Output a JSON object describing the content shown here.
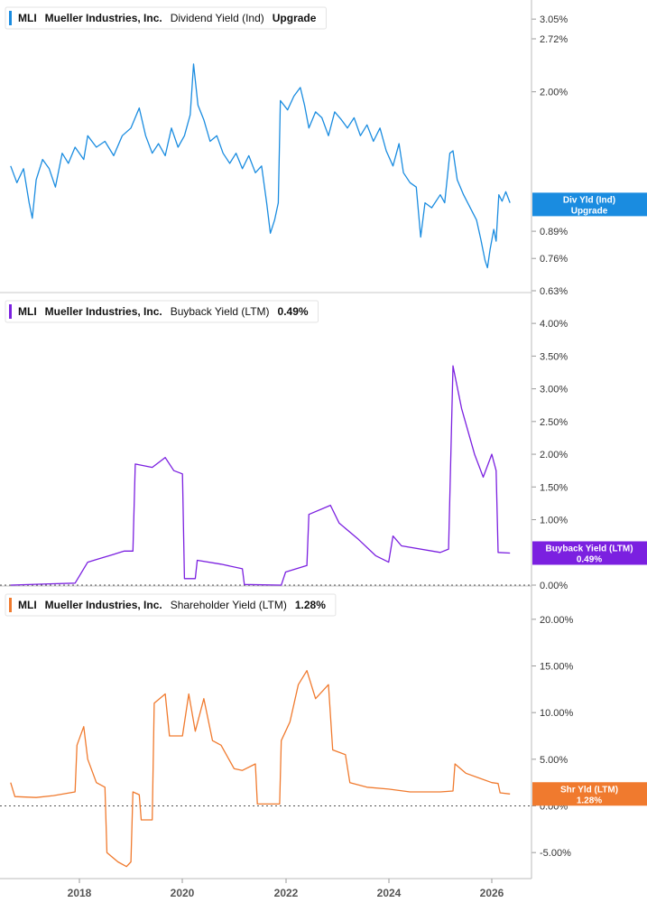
{
  "colors": {
    "dividend": "#1a8ce0",
    "buyback": "#7b20e0",
    "shareholder": "#f07a2e",
    "grid": "#c8c8c8",
    "text": "#333333"
  },
  "chart_data": [
    {
      "type": "line",
      "title": "",
      "legend": {
        "ticker": "MLI",
        "company": "Mueller Industries, Inc.",
        "metric": "Dividend Yield (Ind)",
        "value": "Upgrade"
      },
      "y_scale": "log",
      "ylim": [
        0.63,
        3.2
      ],
      "y_ticks": [
        "3.05%",
        "2.72%",
        "2.00%",
        "0.89%",
        "0.76%",
        "0.63%"
      ],
      "y_tick_values": [
        3.05,
        2.72,
        2.0,
        0.89,
        0.76,
        0.63
      ],
      "badge": {
        "line1": "Div Yld (Ind)",
        "line2": "Upgrade",
        "behind_text": "1.0",
        "value": 1.04
      },
      "series": [
        {
          "values": [
            [
              "2016-09-01",
              1.3
            ],
            [
              "2016-10-15",
              1.18
            ],
            [
              "2016-12-01",
              1.28
            ],
            [
              "2017-01-10",
              1.05
            ],
            [
              "2017-02-01",
              0.96
            ],
            [
              "2017-03-01",
              1.2
            ],
            [
              "2017-04-15",
              1.35
            ],
            [
              "2017-06-01",
              1.28
            ],
            [
              "2017-07-15",
              1.15
            ],
            [
              "2017-09-01",
              1.4
            ],
            [
              "2017-10-15",
              1.32
            ],
            [
              "2017-12-01",
              1.45
            ],
            [
              "2018-02-01",
              1.35
            ],
            [
              "2018-03-01",
              1.55
            ],
            [
              "2018-05-01",
              1.45
            ],
            [
              "2018-07-01",
              1.5
            ],
            [
              "2018-09-01",
              1.38
            ],
            [
              "2018-11-01",
              1.55
            ],
            [
              "2019-01-01",
              1.62
            ],
            [
              "2019-03-01",
              1.82
            ],
            [
              "2019-04-15",
              1.55
            ],
            [
              "2019-06-01",
              1.4
            ],
            [
              "2019-07-15",
              1.48
            ],
            [
              "2019-09-01",
              1.38
            ],
            [
              "2019-10-15",
              1.62
            ],
            [
              "2019-12-01",
              1.45
            ],
            [
              "2020-01-15",
              1.55
            ],
            [
              "2020-02-25",
              1.75
            ],
            [
              "2020-03-20",
              2.35
            ],
            [
              "2020-04-20",
              1.85
            ],
            [
              "2020-06-01",
              1.7
            ],
            [
              "2020-07-15",
              1.5
            ],
            [
              "2020-09-01",
              1.55
            ],
            [
              "2020-10-15",
              1.4
            ],
            [
              "2020-12-01",
              1.32
            ],
            [
              "2021-01-15",
              1.4
            ],
            [
              "2021-03-01",
              1.28
            ],
            [
              "2021-04-15",
              1.38
            ],
            [
              "2021-06-01",
              1.25
            ],
            [
              "2021-07-15",
              1.3
            ],
            [
              "2021-08-20",
              1.05
            ],
            [
              "2021-09-15",
              0.88
            ],
            [
              "2021-10-15",
              0.95
            ],
            [
              "2021-11-10",
              1.05
            ],
            [
              "2021-11-25",
              1.9
            ],
            [
              "2022-01-15",
              1.8
            ],
            [
              "2022-03-01",
              1.95
            ],
            [
              "2022-04-15",
              2.05
            ],
            [
              "2022-05-15",
              1.85
            ],
            [
              "2022-06-15",
              1.62
            ],
            [
              "2022-08-01",
              1.78
            ],
            [
              "2022-09-15",
              1.72
            ],
            [
              "2022-11-01",
              1.55
            ],
            [
              "2022-12-15",
              1.78
            ],
            [
              "2023-02-01",
              1.7
            ],
            [
              "2023-03-15",
              1.62
            ],
            [
              "2023-05-01",
              1.72
            ],
            [
              "2023-06-15",
              1.55
            ],
            [
              "2023-08-01",
              1.65
            ],
            [
              "2023-09-15",
              1.5
            ],
            [
              "2023-11-01",
              1.62
            ],
            [
              "2023-12-15",
              1.42
            ],
            [
              "2024-02-01",
              1.3
            ],
            [
              "2024-03-15",
              1.48
            ],
            [
              "2024-04-15",
              1.25
            ],
            [
              "2024-06-01",
              1.18
            ],
            [
              "2024-07-15",
              1.15
            ],
            [
              "2024-08-15",
              0.86
            ],
            [
              "2024-09-15",
              1.05
            ],
            [
              "2024-11-01",
              1.02
            ],
            [
              "2025-01-01",
              1.1
            ],
            [
              "2025-02-01",
              1.05
            ],
            [
              "2025-03-10",
              1.4
            ],
            [
              "2025-04-01",
              1.42
            ],
            [
              "2025-05-01",
              1.2
            ],
            [
              "2025-06-15",
              1.1
            ],
            [
              "2025-08-01",
              1.02
            ],
            [
              "2025-09-15",
              0.95
            ],
            [
              "2025-10-15",
              0.85
            ],
            [
              "2025-11-15",
              0.75
            ],
            [
              "2025-12-01",
              0.72
            ],
            [
              "2025-12-20",
              0.8
            ],
            [
              "2026-01-15",
              0.9
            ],
            [
              "2026-02-01",
              0.84
            ],
            [
              "2026-02-20",
              1.1
            ],
            [
              "2026-03-15",
              1.06
            ],
            [
              "2026-04-10",
              1.12
            ],
            [
              "2026-05-10",
              1.05
            ]
          ]
        }
      ]
    },
    {
      "type": "line",
      "title": "",
      "legend": {
        "ticker": "MLI",
        "company": "Mueller Industries, Inc.",
        "metric": "Buyback Yield (LTM)",
        "value": "0.49%"
      },
      "ylim": [
        0,
        4.25
      ],
      "y_ticks": [
        "4.00%",
        "3.50%",
        "3.00%",
        "2.50%",
        "2.00%",
        "1.50%",
        "1.00%",
        "0.00%"
      ],
      "y_tick_values": [
        4.0,
        3.5,
        3.0,
        2.5,
        2.0,
        1.5,
        1.0,
        0.0
      ],
      "badge": {
        "line1": "Buyback Yield (LTM)",
        "line2": "0.49%",
        "value": 0.49
      },
      "series": [
        {
          "values": [
            [
              "2016-09-01",
              0.0
            ],
            [
              "2017-06-01",
              0.02
            ],
            [
              "2017-12-01",
              0.03
            ],
            [
              "2018-03-01",
              0.35
            ],
            [
              "2018-05-15",
              0.4
            ],
            [
              "2018-08-01",
              0.45
            ],
            [
              "2018-11-15",
              0.52
            ],
            [
              "2019-01-15",
              0.52
            ],
            [
              "2019-02-01",
              1.85
            ],
            [
              "2019-06-01",
              1.8
            ],
            [
              "2019-09-01",
              1.95
            ],
            [
              "2019-11-01",
              1.75
            ],
            [
              "2020-01-01",
              1.7
            ],
            [
              "2020-01-15",
              0.1
            ],
            [
              "2020-04-01",
              0.1
            ],
            [
              "2020-04-15",
              0.38
            ],
            [
              "2020-10-01",
              0.32
            ],
            [
              "2021-03-01",
              0.25
            ],
            [
              "2021-03-15",
              0.01
            ],
            [
              "2021-12-01",
              0.0
            ],
            [
              "2022-01-01",
              0.2
            ],
            [
              "2022-06-01",
              0.3
            ],
            [
              "2022-06-15",
              1.08
            ],
            [
              "2022-11-15",
              1.22
            ],
            [
              "2023-01-15",
              0.95
            ],
            [
              "2023-06-01",
              0.7
            ],
            [
              "2023-10-01",
              0.45
            ],
            [
              "2024-01-01",
              0.35
            ],
            [
              "2024-02-01",
              0.75
            ],
            [
              "2024-04-01",
              0.6
            ],
            [
              "2025-01-01",
              0.5
            ],
            [
              "2025-03-01",
              0.55
            ],
            [
              "2025-04-01",
              3.35
            ],
            [
              "2025-06-01",
              2.7
            ],
            [
              "2025-09-01",
              2.0
            ],
            [
              "2025-11-01",
              1.65
            ],
            [
              "2026-01-01",
              2.0
            ],
            [
              "2026-02-01",
              1.75
            ],
            [
              "2026-02-15",
              0.5
            ],
            [
              "2026-05-10",
              0.49
            ]
          ]
        }
      ]
    },
    {
      "type": "line",
      "title": "",
      "legend": {
        "ticker": "MLI",
        "company": "Mueller Industries, Inc.",
        "metric": "Shareholder Yield (LTM)",
        "value": "1.28%"
      },
      "ylim": [
        -7.5,
        22.5
      ],
      "y_ticks": [
        "20.00%",
        "15.00%",
        "10.00%",
        "5.00%",
        "0.00%",
        "-5.00%"
      ],
      "y_tick_values": [
        20,
        15,
        10,
        5,
        0,
        -5
      ],
      "badge": {
        "line1": "Shr Yld (LTM)",
        "line2": "1.28%",
        "value": 1.28
      },
      "series": [
        {
          "values": [
            [
              "2016-09-01",
              2.5
            ],
            [
              "2016-10-01",
              1.0
            ],
            [
              "2017-03-01",
              0.9
            ],
            [
              "2017-07-01",
              1.1
            ],
            [
              "2017-12-01",
              1.5
            ],
            [
              "2017-12-15",
              6.5
            ],
            [
              "2018-02-01",
              8.5
            ],
            [
              "2018-03-01",
              5.0
            ],
            [
              "2018-05-01",
              2.5
            ],
            [
              "2018-07-01",
              2.0
            ],
            [
              "2018-07-15",
              -5.0
            ],
            [
              "2018-10-01",
              -6.0
            ],
            [
              "2018-12-01",
              -6.5
            ],
            [
              "2019-01-01",
              -6.0
            ],
            [
              "2019-01-15",
              1.5
            ],
            [
              "2019-03-01",
              1.2
            ],
            [
              "2019-03-15",
              -1.5
            ],
            [
              "2019-06-01",
              -1.5
            ],
            [
              "2019-06-15",
              11.0
            ],
            [
              "2019-09-01",
              12.0
            ],
            [
              "2019-10-01",
              7.5
            ],
            [
              "2020-01-01",
              7.5
            ],
            [
              "2020-02-15",
              12.0
            ],
            [
              "2020-04-01",
              8.0
            ],
            [
              "2020-06-01",
              11.5
            ],
            [
              "2020-08-01",
              7.0
            ],
            [
              "2020-10-01",
              6.5
            ],
            [
              "2021-01-01",
              4.0
            ],
            [
              "2021-03-01",
              3.8
            ],
            [
              "2021-06-01",
              4.5
            ],
            [
              "2021-06-15",
              0.2
            ],
            [
              "2021-11-20",
              0.2
            ],
            [
              "2021-12-01",
              7.0
            ],
            [
              "2022-02-01",
              9.0
            ],
            [
              "2022-04-01",
              13.0
            ],
            [
              "2022-06-01",
              14.5
            ],
            [
              "2022-08-01",
              11.5
            ],
            [
              "2022-11-01",
              13.0
            ],
            [
              "2022-12-01",
              6.0
            ],
            [
              "2023-03-01",
              5.5
            ],
            [
              "2023-04-01",
              2.5
            ],
            [
              "2023-08-01",
              2.0
            ],
            [
              "2024-01-01",
              1.8
            ],
            [
              "2024-06-01",
              1.5
            ],
            [
              "2025-01-01",
              1.5
            ],
            [
              "2025-04-01",
              1.6
            ],
            [
              "2025-04-15",
              4.5
            ],
            [
              "2025-07-01",
              3.5
            ],
            [
              "2025-10-01",
              3.0
            ],
            [
              "2026-01-01",
              2.5
            ],
            [
              "2026-02-15",
              2.4
            ],
            [
              "2026-03-01",
              1.4
            ],
            [
              "2026-05-10",
              1.28
            ]
          ]
        }
      ]
    }
  ],
  "x_axis": {
    "labels": [
      "2018",
      "2020",
      "2022",
      "2024",
      "2026"
    ]
  }
}
